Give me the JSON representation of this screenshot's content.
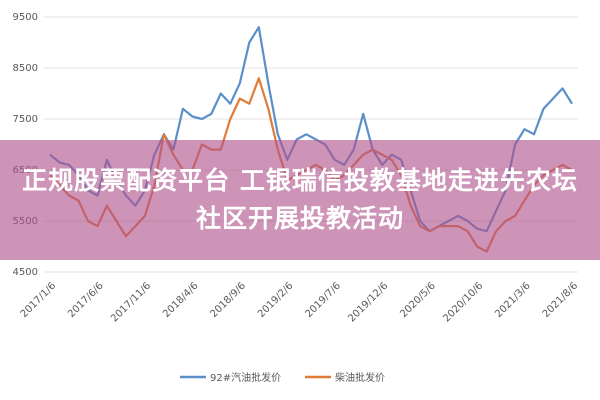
{
  "chart_data": {
    "type": "line",
    "categories": [
      "2017/1/6",
      null,
      null,
      null,
      null,
      "2017/6/6",
      null,
      null,
      null,
      null,
      "2017/11/6",
      null,
      null,
      null,
      null,
      "2018/4/6",
      null,
      null,
      null,
      null,
      "2018/9/6",
      null,
      null,
      null,
      null,
      "2019/2/6",
      null,
      null,
      null,
      null,
      "2019/7/6",
      null,
      null,
      null,
      null,
      "2019/12/6",
      null,
      null,
      null,
      null,
      "2020/5/6",
      null,
      null,
      null,
      null,
      "2020/10/6",
      null,
      null,
      null,
      null,
      "2021/3/6",
      null,
      null,
      null,
      null,
      "2021/8/6"
    ],
    "series": [
      {
        "name": "92#汽油批发价",
        "color": "#5b8fc9",
        "values": [
          6800,
          6650,
          6600,
          6400,
          6100,
          6000,
          6700,
          6300,
          6000,
          5800,
          6100,
          6800,
          7200,
          6900,
          7700,
          7550,
          7500,
          7600,
          8000,
          7800,
          8200,
          9000,
          9300,
          8200,
          7200,
          6700,
          7100,
          7200,
          7100,
          7000,
          6700,
          6600,
          6900,
          7600,
          6900,
          6600,
          6800,
          6700,
          6100,
          5500,
          5300,
          5400,
          5500,
          5600,
          5500,
          5350,
          5300,
          5700,
          6100,
          7000,
          7300,
          7200,
          7700,
          7900,
          8100,
          7800
        ]
      },
      {
        "name": "柴油批发价",
        "color": "#e07b39",
        "values": [
          6400,
          6200,
          6000,
          5900,
          5500,
          5400,
          5800,
          5500,
          5200,
          5400,
          5600,
          6200,
          7200,
          6800,
          6500,
          6500,
          7000,
          6900,
          6900,
          7500,
          7900,
          7800,
          8300,
          7700,
          6900,
          6300,
          6400,
          6500,
          6600,
          6500,
          6300,
          6400,
          6600,
          6800,
          6900,
          6800,
          6700,
          6400,
          5800,
          5400,
          5300,
          5400,
          5400,
          5400,
          5300,
          5000,
          4900,
          5300,
          5500,
          5600,
          5900,
          6200,
          6400,
          6500,
          6600,
          6500
        ]
      }
    ],
    "ylim": [
      4500,
      9500
    ],
    "yticks": [
      4500,
      5500,
      6500,
      7500,
      8500,
      9500
    ],
    "grid": true,
    "legend": "bottom"
  },
  "banner": {
    "text": "正规股票配资平台  工银瑞信投教基地走进先农坛社区开展投教活动"
  }
}
